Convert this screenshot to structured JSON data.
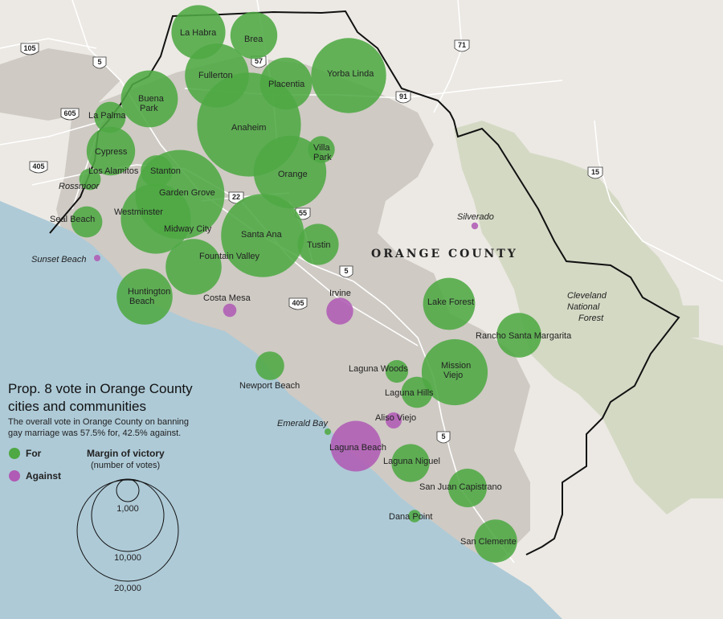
{
  "legend": {
    "title_line1": "Prop. 8 vote in Orange County",
    "title_line2": "cities and communities",
    "subtitle_line1": "The overall vote in Orange County on banning",
    "subtitle_line2": "gay marriage was 57.5% for, 42.5% against.",
    "for_label": "For",
    "against_label": "Against",
    "margin_title": "Margin of victory",
    "margin_subtitle": "(number of votes)",
    "size_labels": [
      "1,000",
      "10,000",
      "20,000"
    ]
  },
  "colors": {
    "for": "#4ea843",
    "against": "#b05bb5",
    "ocean": "#aecad7",
    "land": "#ece9e4",
    "urban": "#cfcac4",
    "forest": "#d4d9c4"
  },
  "map_labels": {
    "county": "ORANGE COUNTY",
    "forest_line1": "Cleveland",
    "forest_line2": "National",
    "forest_line3": "Forest",
    "rossmoor": "Rossmoor",
    "sunset_beach": "Sunset Beach",
    "silverado": "Silverado",
    "emerald_bay": "Emerald Bay"
  },
  "highways": [
    "105",
    "5",
    "605",
    "405",
    "57",
    "91",
    "71",
    "15",
    "22",
    "55",
    "5",
    "405",
    "5"
  ],
  "cities": [
    {
      "name": "La Habra",
      "vote": "for",
      "margin": 5700
    },
    {
      "name": "Brea",
      "vote": "for",
      "margin": 4300
    },
    {
      "name": "Fullerton",
      "vote": "for",
      "margin": 8000
    },
    {
      "name": "Placentia",
      "vote": "for",
      "margin": 5300
    },
    {
      "name": "Yorba Linda",
      "vote": "for",
      "margin": 11000
    },
    {
      "name": "Buena Park",
      "vote": "for",
      "margin": 6300
    },
    {
      "name": "La Palma",
      "vote": "for",
      "margin": 1900
    },
    {
      "name": "Anaheim",
      "vote": "for",
      "margin": 21000
    },
    {
      "name": "Villa Park",
      "vote": "for",
      "margin": 1400
    },
    {
      "name": "Cypress",
      "vote": "for",
      "margin": 4600
    },
    {
      "name": "Los Alamitos",
      "vote": "for",
      "margin": 900
    },
    {
      "name": "Stanton",
      "vote": "for",
      "margin": 2000
    },
    {
      "name": "Orange",
      "vote": "for",
      "margin": 10300
    },
    {
      "name": "Garden Grove",
      "vote": "for",
      "margin": 15500
    },
    {
      "name": "Westminster",
      "vote": "for",
      "margin": 9600
    },
    {
      "name": "Midway City",
      "vote": "for",
      "margin": 400
    },
    {
      "name": "Seal Beach",
      "vote": "for",
      "margin": 1900
    },
    {
      "name": "Santa Ana",
      "vote": "for",
      "margin": 13500
    },
    {
      "name": "Tustin",
      "vote": "for",
      "margin": 3300
    },
    {
      "name": "Fountain Valley",
      "vote": "for",
      "margin": 6100
    },
    {
      "name": "Huntington Beach",
      "vote": "for",
      "margin": 6100
    },
    {
      "name": "Costa Mesa",
      "vote": "against",
      "margin": 350
    },
    {
      "name": "Irvine",
      "vote": "against",
      "margin": 1400
    },
    {
      "name": "Lake Forest",
      "vote": "for",
      "margin": 5300
    },
    {
      "name": "Rancho Santa Margarita",
      "vote": "for",
      "margin": 3900
    },
    {
      "name": "Mission Viejo",
      "vote": "for",
      "margin": 8500
    },
    {
      "name": "Laguna Woods",
      "vote": "for",
      "margin": 1000
    },
    {
      "name": "Laguna Hills",
      "vote": "for",
      "margin": 1900
    },
    {
      "name": "Newport Beach",
      "vote": "for",
      "margin": 1600
    },
    {
      "name": "Aliso Viejo",
      "vote": "against",
      "margin": 500
    },
    {
      "name": "Laguna Beach",
      "vote": "against",
      "margin": 5000
    },
    {
      "name": "Laguna Niguel",
      "vote": "for",
      "margin": 2800
    },
    {
      "name": "San Juan Capistrano",
      "vote": "for",
      "margin": 2900
    },
    {
      "name": "Dana Point",
      "vote": "for",
      "margin": 300
    },
    {
      "name": "San Clemente",
      "vote": "for",
      "margin": 3600
    },
    {
      "name": "Silverado",
      "vote": "against",
      "margin": 90
    },
    {
      "name": "Sunset Beach",
      "vote": "against",
      "margin": 80
    },
    {
      "name": "Emerald Bay",
      "vote": "for",
      "margin": 80
    }
  ]
}
